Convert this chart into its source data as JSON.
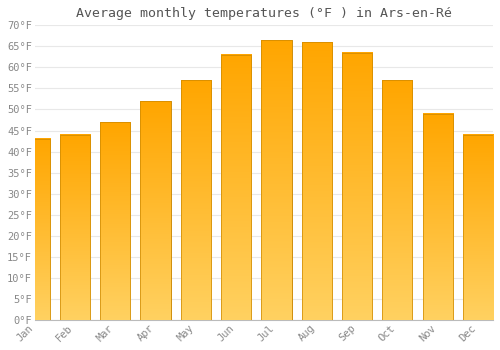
{
  "months": [
    "Jan",
    "Feb",
    "Mar",
    "Apr",
    "May",
    "Jun",
    "Jul",
    "Aug",
    "Sep",
    "Oct",
    "Nov",
    "Dec"
  ],
  "values": [
    43,
    44,
    47,
    52,
    57,
    63,
    66.5,
    66,
    63.5,
    57,
    49,
    44
  ],
  "bar_color_top": "#FFA500",
  "bar_color_bottom": "#FFD060",
  "bar_edge_color": "#CC8800",
  "title": "Average monthly temperatures (°F ) in Ars-en-Ré",
  "ylim": [
    0,
    70
  ],
  "yticks": [
    0,
    5,
    10,
    15,
    20,
    25,
    30,
    35,
    40,
    45,
    50,
    55,
    60,
    65,
    70
  ],
  "ytick_labels": [
    "0°F",
    "5°F",
    "10°F",
    "15°F",
    "20°F",
    "25°F",
    "30°F",
    "35°F",
    "40°F",
    "45°F",
    "50°F",
    "55°F",
    "60°F",
    "65°F",
    "70°F"
  ],
  "background_color": "#ffffff",
  "grid_color": "#e8e8e8",
  "title_fontsize": 9.5,
  "tick_fontsize": 7.5,
  "bar_width": 0.75
}
